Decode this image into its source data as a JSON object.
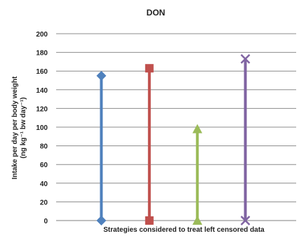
{
  "chart_data": {
    "type": "line",
    "title": "DON",
    "xlabel": "Strategies considered to treat left censored data",
    "ylabel": "Intake per day per body weight",
    "ylabel_units": "(ng kg⁻¹ bw day⁻¹)",
    "ylim": [
      0,
      200
    ],
    "yticks": [
      "0",
      "20",
      "40",
      "60",
      "80",
      "100",
      "120",
      "140",
      "160",
      "180",
      "200"
    ],
    "grid": "horizontal",
    "series": [
      {
        "low": 0,
        "high": 155,
        "color": "#4f81bd",
        "marker": "diamond"
      },
      {
        "low": 0,
        "high": 163,
        "color": "#c0504d",
        "marker": "square"
      },
      {
        "low": 0,
        "high": 98,
        "color": "#9bbb59",
        "marker": "triangle"
      },
      {
        "low": 0,
        "high": 173,
        "color": "#8064a2",
        "marker": "x"
      }
    ]
  }
}
